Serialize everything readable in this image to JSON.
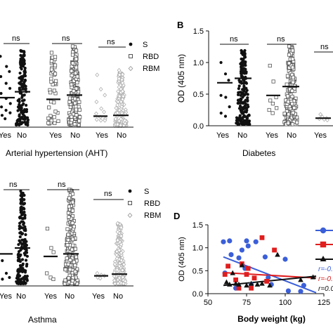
{
  "colors": {
    "black": "#111111",
    "light_gray": "#b0b0b0",
    "mid_gray": "#777777",
    "blue": "#3b5fd9",
    "red": "#e01e1e",
    "blue_text": "#3b5fd9",
    "red_text": "#d21c1c"
  },
  "chart_data": [
    {
      "id": "A",
      "type": "scatter",
      "panel_letter": "",
      "xlabel": "Arterial hypertension (AHT)",
      "ylabel": "",
      "groups": [
        {
          "series": "S",
          "category": "Yes",
          "median": 0.35,
          "points": [
            0.84,
            0.72,
            0.66,
            0.6,
            0.52,
            0.46,
            0.4,
            0.34,
            0.28,
            0.24,
            0.2,
            0.17,
            0.14,
            0.1
          ]
        },
        {
          "series": "S",
          "category": "No",
          "median": 0.42
        },
        {
          "series": "RBD",
          "category": "Yes",
          "median": 0.33
        },
        {
          "series": "RBD",
          "category": "No",
          "median": 0.38
        },
        {
          "series": "RBM",
          "category": "Yes",
          "median": 0.13
        },
        {
          "series": "RBM",
          "category": "No",
          "median": 0.14
        }
      ],
      "significance": [
        "ns",
        "ns",
        "ns"
      ],
      "legend": [
        "S",
        "RBD",
        "RBM"
      ]
    },
    {
      "id": "B",
      "type": "scatter",
      "panel_letter": "B",
      "xlabel": "Diabetes",
      "ylabel": "OD (405 nm)",
      "ylim": [
        0,
        1.5
      ],
      "yticks": [
        "0.0",
        "0.5",
        "1.0",
        "1.5"
      ],
      "groups": [
        {
          "series": "S",
          "category": "Yes",
          "median": 0.68,
          "points": [
            1.0,
            0.82,
            0.72,
            0.48,
            0.45,
            0.3,
            0.2,
            0.15
          ]
        },
        {
          "series": "S",
          "category": "No",
          "median": 0.75
        },
        {
          "series": "RBD",
          "category": "Yes",
          "median": 0.48,
          "points": [
            0.95,
            0.7,
            0.45,
            0.4,
            0.35,
            0.28,
            0.25,
            0.2
          ]
        },
        {
          "series": "RBD",
          "category": "No",
          "median": 0.62
        },
        {
          "series": "RBM",
          "category": "Yes",
          "median": 0.12,
          "points": [
            0.18,
            0.14,
            0.12,
            0.11,
            0.1,
            0.09
          ]
        }
      ],
      "significance": [
        "ns",
        "ns",
        "ns"
      ]
    },
    {
      "id": "C",
      "type": "scatter",
      "panel_letter": "",
      "xlabel": "Asthma",
      "ylabel": "",
      "groups": [
        {
          "series": "S",
          "category": "Yes",
          "median": 0.38,
          "points": [
            0.3,
            0.15,
            0.1,
            0.08
          ]
        },
        {
          "series": "S",
          "category": "No",
          "median": 0.45
        },
        {
          "series": "RBD",
          "category": "Yes",
          "median": 0.35,
          "points": [
            0.68,
            0.45,
            0.4,
            0.15,
            0.1,
            0.08
          ]
        },
        {
          "series": "RBD",
          "category": "No",
          "median": 0.38
        },
        {
          "series": "RBM",
          "category": "Yes",
          "median": 0.12,
          "points": [
            0.15,
            0.13,
            0.12,
            0.1,
            0.09
          ]
        },
        {
          "series": "RBM",
          "category": "No",
          "median": 0.14
        }
      ],
      "significance": [
        "ns",
        "ns",
        "ns"
      ],
      "legend": [
        "S",
        "RBD",
        "RBM"
      ]
    },
    {
      "id": "D",
      "type": "scatter",
      "panel_letter": "D",
      "xlabel": "Body weight (kg)",
      "ylabel": "OD (405 nm)",
      "xlim": [
        50,
        125
      ],
      "ylim": [
        0,
        1.5
      ],
      "xticks": [
        "50",
        "75",
        "100",
        "125"
      ],
      "yticks": [
        "0.0",
        "0.5",
        "1.0",
        "1.5"
      ],
      "series": [
        {
          "marker": "circle",
          "color": "blue",
          "points": [
            [
              60,
              1.13
            ],
            [
              61,
              0.45
            ],
            [
              64,
              1.15
            ],
            [
              65,
              0.85
            ],
            [
              68,
              0.12
            ],
            [
              70,
              0.78
            ],
            [
              72,
              0.95
            ],
            [
              74,
              0.55
            ],
            [
              75,
              1.15
            ],
            [
              76,
              1.04
            ],
            [
              78,
              0.2
            ],
            [
              81,
              1.13
            ],
            [
              87,
              0.8
            ],
            [
              89,
              0.35
            ],
            [
              91,
              0.2
            ],
            [
              100,
              0.75
            ],
            [
              102,
              0.06
            ],
            [
              110,
              0.05
            ],
            [
              112,
              0.18
            ]
          ],
          "fit": [
            [
              60,
              0.8
            ],
            [
              120,
              0.02
            ]
          ]
        },
        {
          "marker": "square",
          "color": "red",
          "points": [
            [
              61,
              0.42
            ],
            [
              63,
              0.6
            ],
            [
              68,
              0.3
            ],
            [
              70,
              0.12
            ],
            [
              72,
              0.65
            ],
            [
              75,
              0.42
            ],
            [
              76,
              0.55
            ],
            [
              78,
              0.12
            ],
            [
              80,
              0.34
            ],
            [
              85,
              1.22
            ],
            [
              88,
              0.27
            ],
            [
              93,
              0.95
            ]
          ],
          "fit": [
            [
              60,
              0.46
            ],
            [
              120,
              0.34
            ]
          ]
        },
        {
          "marker": "triangle",
          "color": "black",
          "points": [
            [
              62,
              0.25
            ],
            [
              64,
              0.2
            ],
            [
              66,
              0.45
            ],
            [
              68,
              0.22
            ],
            [
              70,
              0.2
            ],
            [
              72,
              0.62
            ],
            [
              75,
              0.18
            ],
            [
              78,
              0.22
            ],
            [
              82,
              0.2
            ],
            [
              85,
              0.22
            ],
            [
              90,
              0.18
            ],
            [
              95,
              0.85
            ],
            [
              110,
              0.3
            ],
            [
              118,
              0.36
            ]
          ],
          "fit": [
            [
              60,
              0.18
            ],
            [
              120,
              0.38
            ]
          ]
        }
      ],
      "legend_markers": [
        "circle",
        "square",
        "triangle"
      ],
      "stats": [
        "r=-0.",
        "r=-0.",
        "r=0.0"
      ]
    }
  ]
}
